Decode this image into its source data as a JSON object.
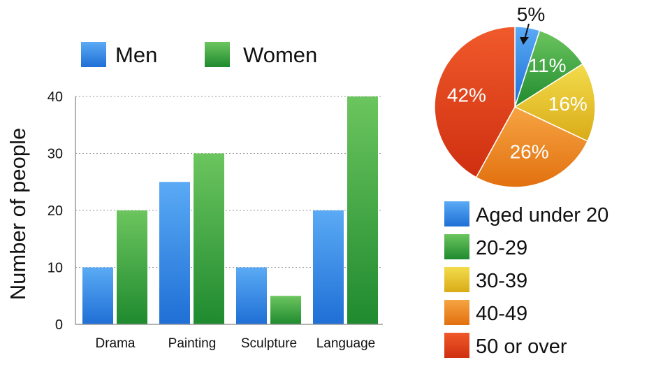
{
  "chart_data": [
    {
      "type": "bar",
      "categories": [
        "Drama",
        "Painting",
        "Sculpture",
        "Language"
      ],
      "series": [
        {
          "name": "Men",
          "values": [
            10,
            25,
            10,
            20
          ]
        },
        {
          "name": "Women",
          "values": [
            20,
            30,
            5,
            40
          ]
        }
      ],
      "ylabel": "Number of people",
      "ylim": [
        0,
        40
      ],
      "yticks": [
        0,
        10,
        20,
        30,
        40
      ],
      "grid": true,
      "legend": "top",
      "colors": {
        "Men": "#3a8fe6",
        "Women": "#3fae45"
      }
    },
    {
      "type": "pie",
      "labels": [
        "Aged under 20",
        "20-29",
        "30-39",
        "40-49",
        "50 or over"
      ],
      "values": [
        5,
        11,
        16,
        26,
        42
      ],
      "value_labels": [
        "5%",
        "11%",
        "16%",
        "26%",
        "42%"
      ],
      "legend": "bottom",
      "colors": [
        "#3a8fe6",
        "#3fae45",
        "#ebc62b",
        "#f08a24",
        "#e6401e"
      ]
    }
  ]
}
